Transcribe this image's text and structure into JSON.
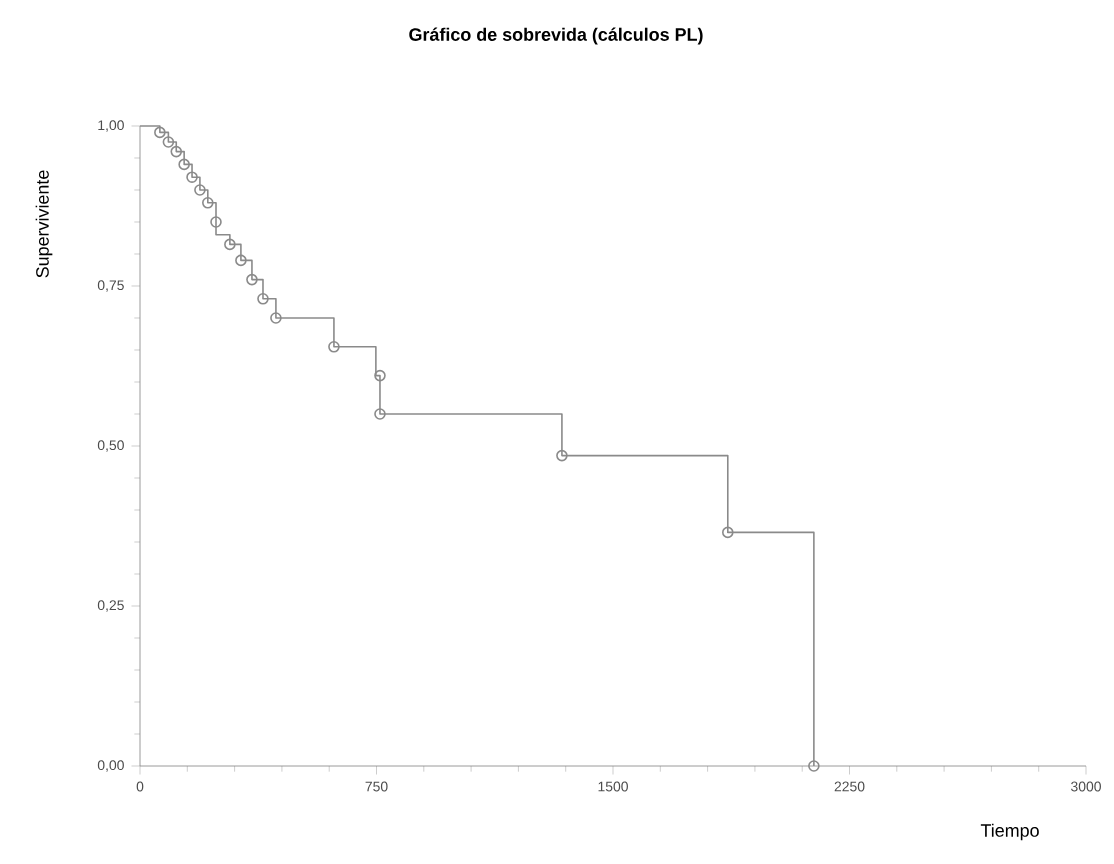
{
  "chart_data": {
    "type": "step",
    "title": "Gráfico de sobrevida (cálculos PL)",
    "xlabel": "Tiempo",
    "ylabel": "Superviviente",
    "xlim": [
      0,
      3000
    ],
    "xticks": [
      0,
      750,
      1500,
      2250,
      3000
    ],
    "ylim": [
      0,
      1
    ],
    "yticks": [
      {
        "value": 0,
        "label": "0,00"
      },
      {
        "value": 0.25,
        "label": "0,25"
      },
      {
        "value": 0.5,
        "label": "0,50"
      },
      {
        "value": 0.75,
        "label": "0,75"
      },
      {
        "value": 1,
        "label": "1,00"
      }
    ],
    "grid": false,
    "series": [
      {
        "marker": "none",
        "color": "#8a8a8a",
        "x": [
          0,
          63,
          90,
          115,
          140,
          165,
          190,
          215,
          241,
          285,
          320,
          355,
          390,
          431,
          615,
          748,
          761,
          1338,
          1864,
          2137
        ],
        "values": [
          1.0,
          0.99,
          0.975,
          0.96,
          0.94,
          0.92,
          0.9,
          0.88,
          0.83,
          0.815,
          0.79,
          0.76,
          0.73,
          0.7,
          0.655,
          0.61,
          0.55,
          0.485,
          0.365,
          0.0
        ]
      },
      {
        "type": "scatter",
        "marker": "circle",
        "color": "#8a8a8a",
        "x": [
          63,
          90,
          115,
          140,
          165,
          190,
          215,
          241,
          285,
          320,
          355,
          390,
          431,
          615,
          761,
          761,
          1338,
          1864,
          2137
        ],
        "values": [
          0.99,
          0.975,
          0.96,
          0.94,
          0.92,
          0.9,
          0.88,
          0.85,
          0.815,
          0.79,
          0.76,
          0.73,
          0.7,
          0.655,
          0.61,
          0.55,
          0.485,
          0.365,
          0.0
        ]
      }
    ]
  }
}
